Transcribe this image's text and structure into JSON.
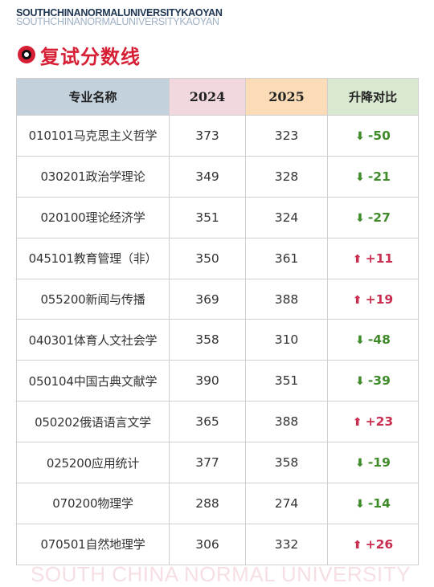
{
  "brand": {
    "line_top": "SOUTHCHINANORMALUNIVERSITYKAOYAN",
    "line_shadow": "SOUTHCHINANORMALUNIVERSITYKAOYAN"
  },
  "heading": {
    "title": "复试分数线",
    "icon": "target-circle-icon",
    "accent_color": "#d61f35"
  },
  "table": {
    "headers": {
      "major": "专业名称",
      "year1": "2024",
      "year2": "2025",
      "change": "升降对比"
    },
    "header_colors": {
      "major": "#c3d1dd",
      "year1": "#f0d8de",
      "year2": "#fcdcb7",
      "change": "#d9e8d0"
    },
    "rows": [
      {
        "major": "010101马克思主义哲学",
        "y2024": "373",
        "y2025": "323",
        "arrow": "⬇",
        "change": "-50",
        "trend": "down"
      },
      {
        "major": "030201政治学理论",
        "y2024": "349",
        "y2025": "328",
        "arrow": "⬇",
        "change": "-21",
        "trend": "down"
      },
      {
        "major": "020100理论经济学",
        "y2024": "351",
        "y2025": "324",
        "arrow": "⬇",
        "change": "-27",
        "trend": "down"
      },
      {
        "major": "045101教育管理（非）",
        "y2024": "350",
        "y2025": "361",
        "arrow": "⬆",
        "change": "+11",
        "trend": "up"
      },
      {
        "major": "055200新闻与传播",
        "y2024": "369",
        "y2025": "388",
        "arrow": "⬆",
        "change": "+19",
        "trend": "up"
      },
      {
        "major": "040301体育人文社会学",
        "y2024": "358",
        "y2025": "310",
        "arrow": "⬇",
        "change": "-48",
        "trend": "down"
      },
      {
        "major": "050104中国古典文献学",
        "y2024": "390",
        "y2025": "351",
        "arrow": "⬇",
        "change": "-39",
        "trend": "down"
      },
      {
        "major": "050202俄语语言文学",
        "y2024": "365",
        "y2025": "388",
        "arrow": "⬆",
        "change": "+23",
        "trend": "up"
      },
      {
        "major": "025200应用统计",
        "y2024": "377",
        "y2025": "358",
        "arrow": "⬇",
        "change": "-19",
        "trend": "down"
      },
      {
        "major": "070200物理学",
        "y2024": "288",
        "y2025": "274",
        "arrow": "⬇",
        "change": "-14",
        "trend": "down"
      },
      {
        "major": "070501自然地理学",
        "y2024": "306",
        "y2025": "332",
        "arrow": "⬆",
        "change": "+26",
        "trend": "up"
      }
    ],
    "trend_colors": {
      "down": "#3f8b2a",
      "up": "#c92d4f"
    }
  },
  "footer": {
    "watermark": "SOUTH CHINA NORMAL UNIVERSITY"
  }
}
